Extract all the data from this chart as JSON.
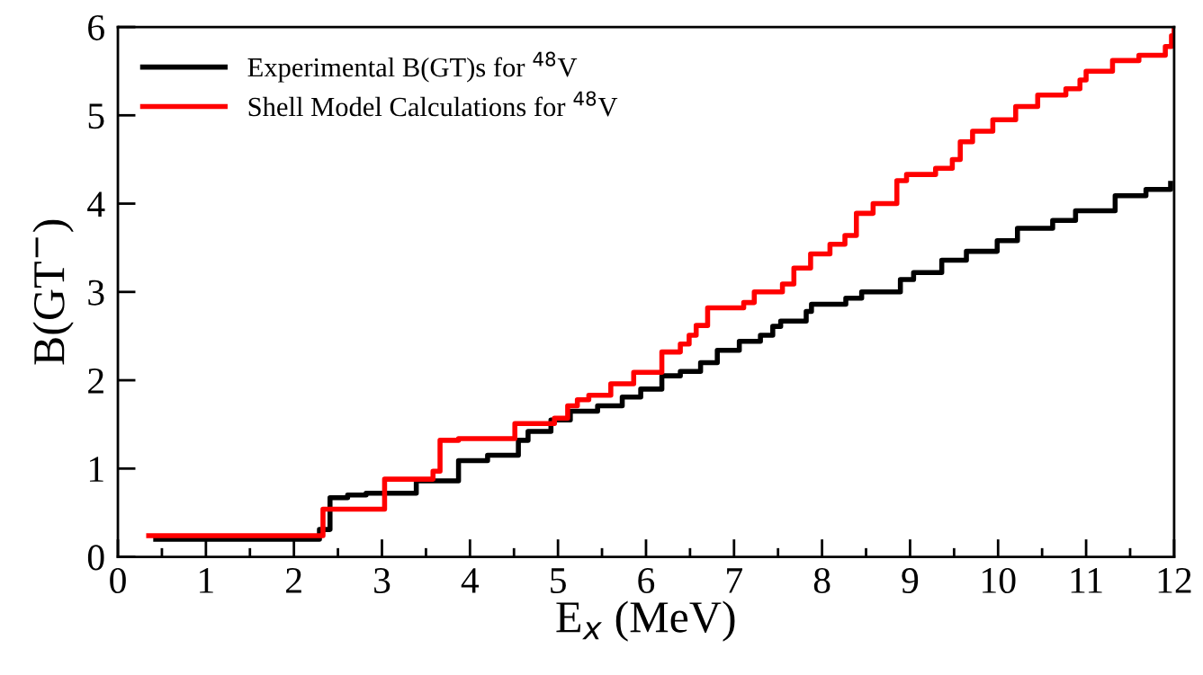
{
  "chart_data": {
    "type": "step",
    "xlabel": "E$_{x}$ (MeV)",
    "ylabel": "B(GT$^{−}$)",
    "xlim": [
      0,
      12
    ],
    "xticks": [
      0,
      1,
      2,
      3,
      4,
      5,
      6,
      7,
      8,
      9,
      10,
      11,
      12
    ],
    "ylim": [
      0,
      6
    ],
    "yticks": [
      0,
      1,
      2,
      3,
      4,
      5,
      6
    ],
    "grid": false,
    "legend": "top left",
    "line_style": "solid",
    "marker": "none",
    "series": [
      {
        "name": "Experimental B(GT)s for $^{48}$V",
        "color": "#000000",
        "x": [
          0.43,
          2.29,
          2.41,
          2.61,
          2.82,
          3.39,
          3.87,
          4.2,
          4.55,
          4.66,
          4.92,
          5.14,
          5.45,
          5.73,
          5.94,
          6.18,
          6.39,
          6.62,
          6.81,
          7.06,
          7.3,
          7.44,
          7.53,
          7.82,
          7.88,
          8.27,
          8.45,
          8.89,
          9.04,
          9.36,
          9.64,
          9.99,
          10.22,
          10.62,
          10.88,
          11.33,
          11.68,
          11.96
        ],
        "values": [
          0.2,
          0.31,
          0.67,
          0.7,
          0.72,
          0.86,
          1.09,
          1.15,
          1.32,
          1.42,
          1.55,
          1.65,
          1.71,
          1.81,
          1.9,
          2.05,
          2.1,
          2.2,
          2.34,
          2.44,
          2.51,
          2.61,
          2.67,
          2.78,
          2.86,
          2.93,
          3.0,
          3.14,
          3.22,
          3.36,
          3.46,
          3.58,
          3.72,
          3.81,
          3.92,
          4.09,
          4.16,
          4.23
        ]
      },
      {
        "name": "Shell Model Calculations for $^{48}$V",
        "color": "#ff0000",
        "x": [
          0.35,
          2.33,
          3.03,
          3.58,
          3.66,
          3.87,
          4.51,
          4.96,
          5.11,
          5.22,
          5.35,
          5.6,
          5.86,
          6.18,
          6.39,
          6.49,
          6.57,
          6.7,
          7.11,
          7.23,
          7.55,
          7.68,
          7.87,
          8.09,
          8.26,
          8.39,
          8.58,
          8.85,
          8.96,
          9.29,
          9.48,
          9.57,
          9.71,
          9.94,
          10.2,
          10.45,
          10.77,
          10.93,
          11.0,
          11.3,
          11.6,
          11.9,
          11.97,
          12.0
        ],
        "values": [
          0.24,
          0.54,
          0.88,
          0.97,
          1.32,
          1.34,
          1.51,
          1.57,
          1.71,
          1.78,
          1.83,
          1.96,
          2.09,
          2.32,
          2.41,
          2.51,
          2.62,
          2.82,
          2.88,
          3.0,
          3.09,
          3.27,
          3.43,
          3.54,
          3.64,
          3.89,
          4.0,
          4.26,
          4.33,
          4.4,
          4.5,
          4.7,
          4.82,
          4.95,
          5.1,
          5.23,
          5.3,
          5.4,
          5.5,
          5.62,
          5.68,
          5.78,
          5.9,
          6.0
        ]
      }
    ]
  }
}
